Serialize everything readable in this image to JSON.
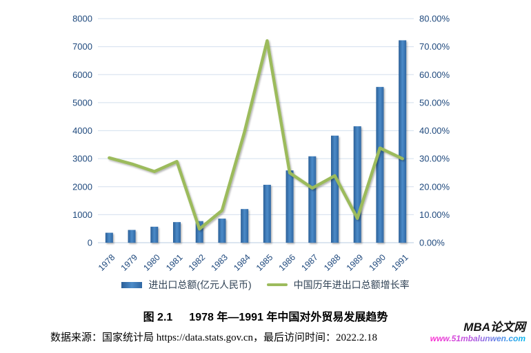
{
  "chart_data": {
    "type": "bar",
    "subtype": "bar-and-line-combo",
    "categories": [
      "1978",
      "1979",
      "1980",
      "1981",
      "1982",
      "1983",
      "1984",
      "1985",
      "1986",
      "1987",
      "1988",
      "1989",
      "1990",
      "1991"
    ],
    "series": [
      {
        "name": "进出口总额(亿元人民币)",
        "type": "bar",
        "axis": "left",
        "color": "#2E74B5",
        "values": [
          355,
          455,
          570,
          735,
          771,
          860,
          1201,
          2067,
          2580,
          3084,
          3822,
          4156,
          5560,
          7226
        ]
      },
      {
        "name": "中国历年进出口总额增长率",
        "type": "line",
        "axis": "right",
        "color": "#9CBB5C",
        "values": [
          30.3,
          28.1,
          25.4,
          29.0,
          4.9,
          11.5,
          39.6,
          72.1,
          24.9,
          19.5,
          23.9,
          8.7,
          33.8,
          30.0
        ]
      }
    ],
    "left_axis": {
      "min": 0,
      "max": 8000,
      "tick_labels": [
        "0",
        "1000",
        "2000",
        "3000",
        "4000",
        "5000",
        "6000",
        "7000",
        "8000"
      ]
    },
    "right_axis": {
      "min": 0,
      "max": 80,
      "tick_labels": [
        "0.00%",
        "10.00%",
        "20.00%",
        "30.00%",
        "40.00%",
        "50.00%",
        "60.00%",
        "70.00%",
        "80.00%"
      ]
    },
    "grid": true,
    "legend_position": "bottom",
    "title": ""
  },
  "legend": {
    "bar_label": "进出口总额(亿元人民币)",
    "line_label": "中国历年进出口总额增长率"
  },
  "caption": {
    "label": "图 2.1",
    "title": "1978 年—1991 年中国对外贸易发展趋势"
  },
  "source": {
    "text": "数据来源：国家统计局 https://data.stats.gov.cn，最后访问时间：2022.2.18"
  },
  "watermark": {
    "name": "MBA论文网",
    "url": "www.51mbalunwen.com"
  },
  "colors": {
    "bar": "#2E74B5",
    "bar_gradient": [
      "#2a5f98",
      "#4c8bc8",
      "#2f67a3"
    ],
    "line": "#9CBB5C",
    "axis_text": "#1F497D",
    "gridline": "#DBE5F1",
    "baseline": "#C5D5E8",
    "legend_text": "#2f4154"
  }
}
